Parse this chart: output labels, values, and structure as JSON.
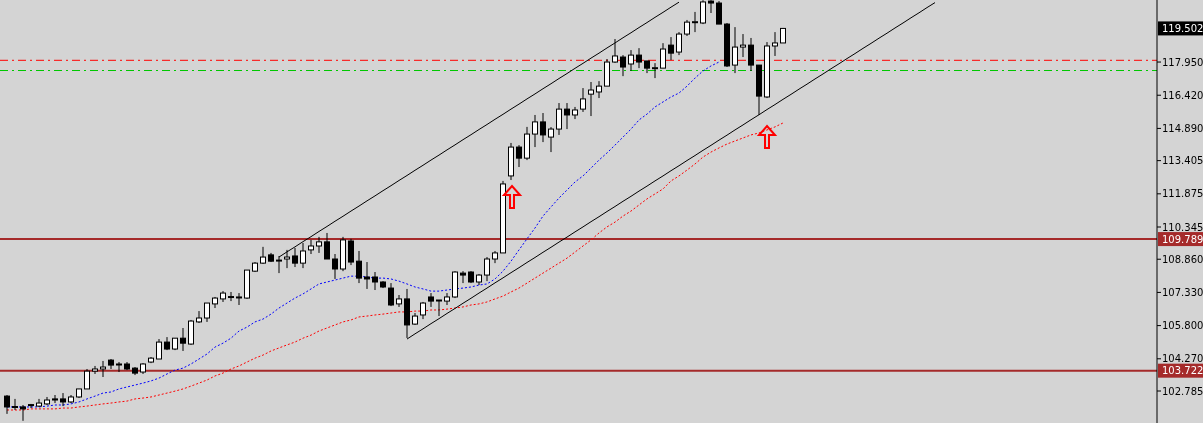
{
  "chart_data": {
    "type": "candlestick",
    "tick_labels": "y",
    "categories": [
      null,
      null,
      null,
      null,
      null,
      null,
      null,
      null,
      null,
      null,
      null,
      null,
      null,
      null,
      null,
      null,
      null,
      null,
      null,
      null,
      null,
      null,
      null,
      null,
      null,
      null,
      null,
      null,
      null,
      null,
      null,
      null,
      null,
      null,
      null,
      null,
      null,
      null,
      null,
      null,
      null,
      null,
      null,
      null,
      null,
      null,
      null,
      null,
      null,
      null,
      null,
      null,
      null,
      null,
      null,
      null,
      null,
      null,
      null,
      null,
      null,
      null,
      null,
      null,
      null,
      null,
      null,
      null,
      null,
      null,
      null,
      null,
      null,
      null,
      null,
      null,
      null,
      null,
      null,
      null,
      null,
      null,
      null,
      null,
      null,
      null,
      null,
      null,
      null,
      null,
      null,
      null,
      null,
      null,
      null,
      null,
      null,
      null,
      null,
      null,
      null,
      null,
      null,
      null,
      null,
      null,
      null,
      null,
      null,
      null,
      null,
      null,
      null,
      null,
      null,
      null,
      null
    ],
    "ylim": [
      101.31,
      120.81
    ],
    "yticks": [
      {
        "value": 117.95,
        "label": "117.950"
      },
      {
        "value": 116.42,
        "label": "116.420"
      },
      {
        "value": 114.89,
        "label": "114.890"
      },
      {
        "value": 113.405,
        "label": "113.405"
      },
      {
        "value": 111.875,
        "label": "111.875"
      },
      {
        "value": 110.345,
        "label": "110.345"
      },
      {
        "value": 108.86,
        "label": "108.860"
      },
      {
        "value": 107.33,
        "label": "107.330"
      },
      {
        "value": 105.8,
        "label": "105.800"
      },
      {
        "value": 104.27,
        "label": "104.270"
      },
      {
        "value": 102.785,
        "label": "102.785"
      }
    ],
    "ohlc": [
      [
        102.55,
        102.6,
        101.73,
        102.05
      ],
      [
        102.05,
        102.42,
        101.91,
        102.07
      ],
      [
        102.05,
        102.14,
        101.41,
        101.96
      ],
      [
        102.14,
        102.19,
        102.0,
        102.16
      ],
      [
        102.09,
        102.42,
        102.05,
        102.23
      ],
      [
        102.19,
        102.51,
        102.14,
        102.37
      ],
      [
        102.42,
        102.6,
        102.23,
        102.37
      ],
      [
        102.42,
        102.69,
        102.09,
        102.28
      ],
      [
        102.28,
        102.6,
        102.23,
        102.51
      ],
      [
        102.51,
        102.88,
        102.46,
        102.88
      ],
      [
        102.88,
        103.8,
        102.88,
        103.7
      ],
      [
        103.7,
        103.94,
        103.57,
        103.8
      ],
      [
        103.8,
        104.17,
        103.43,
        103.89
      ],
      [
        104.21,
        104.26,
        103.8,
        103.98
      ],
      [
        104.03,
        104.12,
        103.66,
        104.03
      ],
      [
        104.03,
        104.12,
        103.75,
        103.8
      ],
      [
        103.84,
        103.89,
        103.52,
        103.61
      ],
      [
        103.66,
        104.07,
        103.57,
        104.03
      ],
      [
        104.12,
        104.35,
        104.07,
        104.3
      ],
      [
        104.26,
        105.18,
        104.26,
        105.04
      ],
      [
        105.04,
        105.27,
        104.67,
        104.72
      ],
      [
        104.72,
        105.22,
        104.67,
        105.22
      ],
      [
        105.22,
        105.69,
        104.63,
        104.99
      ],
      [
        104.95,
        106.06,
        104.91,
        106.01
      ],
      [
        105.97,
        106.47,
        105.92,
        106.15
      ],
      [
        106.15,
        106.84,
        105.97,
        106.84
      ],
      [
        106.8,
        107.12,
        106.61,
        107.07
      ],
      [
        107.03,
        107.39,
        106.89,
        107.3
      ],
      [
        107.12,
        107.35,
        106.93,
        107.14
      ],
      [
        107.12,
        107.3,
        106.75,
        107.1
      ],
      [
        107.07,
        108.36,
        107.03,
        108.36
      ],
      [
        108.31,
        108.73,
        108.27,
        108.68
      ],
      [
        108.68,
        109.43,
        108.64,
        108.96
      ],
      [
        109.06,
        109.15,
        108.73,
        108.77
      ],
      [
        108.82,
        109.01,
        108.22,
        108.82
      ],
      [
        108.87,
        109.29,
        108.45,
        108.96
      ],
      [
        109.01,
        109.38,
        108.5,
        108.68
      ],
      [
        108.68,
        109.61,
        108.45,
        109.24
      ],
      [
        109.29,
        109.75,
        109.1,
        109.47
      ],
      [
        109.47,
        109.89,
        109.15,
        109.66
      ],
      [
        109.66,
        110.07,
        108.87,
        108.87
      ],
      [
        108.87,
        109.1,
        107.95,
        108.41
      ],
      [
        108.41,
        109.89,
        108.31,
        109.75
      ],
      [
        109.7,
        109.8,
        108.59,
        108.73
      ],
      [
        108.77,
        109.24,
        107.76,
        107.99
      ],
      [
        108.04,
        108.73,
        107.49,
        107.95
      ],
      [
        108.04,
        108.27,
        107.44,
        107.81
      ],
      [
        107.81,
        107.85,
        107.53,
        107.58
      ],
      [
        107.53,
        107.76,
        106.7,
        106.75
      ],
      [
        106.8,
        107.21,
        106.66,
        107.03
      ],
      [
        107.03,
        107.49,
        105.23,
        105.83
      ],
      [
        105.87,
        106.38,
        105.83,
        106.24
      ],
      [
        106.29,
        106.89,
        106.1,
        106.84
      ],
      [
        107.12,
        107.3,
        106.66,
        106.93
      ],
      [
        106.98,
        106.98,
        106.24,
        106.98
      ],
      [
        106.93,
        107.3,
        106.75,
        107.12
      ],
      [
        107.12,
        108.31,
        107.07,
        108.27
      ],
      [
        108.22,
        108.31,
        107.76,
        108.13
      ],
      [
        108.27,
        108.31,
        107.76,
        107.81
      ],
      [
        107.81,
        108.18,
        107.67,
        108.13
      ],
      [
        108.13,
        108.96,
        107.85,
        108.87
      ],
      [
        108.87,
        109.24,
        108.68,
        109.15
      ],
      [
        109.15,
        112.47,
        109.15,
        112.33
      ],
      [
        112.7,
        114.22,
        112.51,
        114.03
      ],
      [
        114.03,
        114.12,
        113.11,
        113.52
      ],
      [
        113.52,
        114.96,
        113.43,
        114.63
      ],
      [
        114.63,
        115.51,
        114.03,
        115.19
      ],
      [
        115.19,
        115.6,
        114.26,
        114.59
      ],
      [
        114.49,
        114.95,
        113.8,
        114.86
      ],
      [
        114.86,
        116.06,
        114.59,
        115.78
      ],
      [
        115.78,
        116.06,
        114.86,
        115.51
      ],
      [
        115.51,
        115.88,
        115.32,
        115.74
      ],
      [
        115.78,
        116.75,
        115.65,
        116.25
      ],
      [
        116.47,
        117.03,
        115.46,
        116.66
      ],
      [
        116.57,
        117.07,
        116.29,
        116.84
      ],
      [
        116.84,
        118.09,
        116.84,
        117.95
      ],
      [
        117.95,
        119.01,
        117.91,
        118.23
      ],
      [
        118.18,
        118.27,
        117.3,
        117.72
      ],
      [
        117.86,
        118.5,
        117.54,
        118.27
      ],
      [
        118.27,
        118.59,
        117.67,
        117.95
      ],
      [
        118.0,
        118.0,
        117.44,
        117.67
      ],
      [
        117.67,
        117.9,
        117.21,
        117.69
      ],
      [
        117.67,
        118.82,
        117.67,
        118.55
      ],
      [
        118.73,
        119.1,
        118.04,
        118.36
      ],
      [
        118.41,
        119.33,
        118.27,
        119.24
      ],
      [
        119.24,
        119.89,
        119.15,
        119.79
      ],
      [
        119.79,
        120.26,
        119.33,
        119.81
      ],
      [
        119.75,
        120.8,
        119.7,
        120.72
      ],
      [
        120.76,
        120.8,
        120.21,
        120.67
      ],
      [
        120.67,
        120.76,
        119.7,
        119.7
      ],
      [
        119.7,
        119.75,
        117.72,
        117.77
      ],
      [
        117.81,
        119.56,
        117.44,
        118.64
      ],
      [
        118.64,
        119.24,
        118.18,
        118.73
      ],
      [
        118.73,
        119.06,
        117.54,
        117.81
      ],
      [
        117.81,
        117.81,
        115.51,
        116.38
      ],
      [
        116.34,
        118.87,
        116.29,
        118.69
      ],
      [
        118.69,
        119.33,
        118.23,
        118.83
      ],
      [
        118.83,
        119.52,
        118.83,
        119.5
      ],
      null,
      null,
      null,
      null,
      null,
      null,
      null,
      null,
      null,
      null,
      null,
      null,
      null,
      null,
      null,
      null,
      null,
      null,
      null
    ],
    "series": [
      {
        "type": "line",
        "color": "#0000ff",
        "line_style": "dotted",
        "values": [
          102.05,
          102.05,
          102.05,
          102.05,
          102.05,
          102.09,
          102.14,
          102.14,
          102.19,
          102.28,
          102.42,
          102.55,
          102.69,
          102.74,
          102.88,
          102.97,
          103.06,
          103.15,
          103.25,
          103.38,
          103.57,
          103.75,
          103.84,
          104.03,
          104.26,
          104.49,
          104.81,
          104.99,
          105.22,
          105.55,
          105.73,
          105.97,
          106.1,
          106.33,
          106.61,
          106.84,
          107.07,
          107.26,
          107.49,
          107.72,
          107.81,
          107.9,
          107.99,
          108.08,
          108.08,
          108.04,
          107.99,
          107.99,
          107.95,
          107.85,
          107.72,
          107.58,
          107.49,
          107.39,
          107.39,
          107.44,
          107.49,
          107.53,
          107.58,
          107.67,
          107.72,
          107.95,
          108.31,
          108.77,
          109.29,
          109.8,
          110.3,
          110.85,
          111.27,
          111.68,
          112.05,
          112.42,
          112.7,
          113.06,
          113.43,
          113.76,
          114.12,
          114.49,
          114.86,
          115.28,
          115.55,
          115.88,
          116.11,
          116.34,
          116.52,
          116.84,
          117.21,
          117.54,
          117.77,
          117.95,
          null,
          null,
          null,
          null,
          null,
          null,
          null,
          null,
          null,
          null,
          null,
          null,
          null,
          null,
          null,
          null,
          null,
          null,
          null,
          null,
          null,
          null,
          null,
          null,
          null,
          null,
          null
        ]
      },
      {
        "type": "line",
        "color": "#ff0000",
        "line_style": "dotted",
        "values": [
          101.91,
          101.91,
          101.91,
          101.96,
          101.96,
          101.96,
          101.96,
          102.0,
          102.0,
          102.05,
          102.09,
          102.14,
          102.19,
          102.23,
          102.28,
          102.32,
          102.42,
          102.46,
          102.51,
          102.6,
          102.69,
          102.78,
          102.88,
          103.01,
          103.15,
          103.29,
          103.48,
          103.61,
          103.8,
          103.94,
          104.12,
          104.3,
          104.44,
          104.63,
          104.77,
          104.91,
          105.04,
          105.22,
          105.36,
          105.55,
          105.69,
          105.83,
          105.97,
          106.06,
          106.2,
          106.24,
          106.29,
          106.33,
          106.38,
          106.43,
          106.43,
          106.47,
          106.47,
          106.52,
          106.52,
          106.56,
          106.61,
          106.66,
          106.75,
          106.8,
          106.89,
          107.03,
          107.16,
          107.35,
          107.53,
          107.76,
          107.99,
          108.22,
          108.45,
          108.68,
          108.91,
          109.19,
          109.47,
          109.75,
          110.07,
          110.35,
          110.57,
          110.85,
          111.08,
          111.36,
          111.64,
          111.87,
          112.1,
          112.47,
          112.7,
          112.97,
          113.25,
          113.57,
          113.8,
          113.99,
          114.17,
          114.31,
          114.45,
          114.59,
          114.68,
          114.82,
          114.96,
          115.14,
          null,
          null,
          null,
          null,
          null,
          null,
          null,
          null,
          null,
          null,
          null,
          null,
          null,
          null,
          null,
          null,
          null,
          null,
          null
        ]
      },
      {
        "type": "line",
        "color": "#000000",
        "line_style": "solid",
        "values": [
          null,
          null,
          null,
          null,
          null,
          null,
          null,
          null,
          null,
          null,
          null,
          null,
          null,
          null,
          null,
          null,
          null,
          null,
          null,
          null,
          null,
          null,
          null,
          null,
          null,
          null,
          null,
          null,
          null,
          null,
          null,
          null,
          null,
          null,
          108.96,
          109.2,
          109.43,
          109.67,
          109.9,
          110.14,
          110.37,
          110.61,
          110.84,
          111.08,
          111.31,
          111.55,
          111.78,
          112.02,
          112.25,
          112.49,
          112.72,
          112.96,
          113.19,
          113.43,
          113.66,
          113.9,
          114.13,
          114.37,
          114.6,
          114.84,
          115.07,
          115.31,
          115.54,
          115.78,
          116.01,
          116.25,
          116.48,
          116.72,
          116.95,
          117.19,
          117.42,
          117.66,
          117.89,
          118.13,
          118.36,
          118.6,
          118.83,
          119.07,
          119.3,
          119.54,
          119.77,
          120.01,
          120.24,
          120.48,
          120.71,
          null,
          null,
          null,
          null,
          null,
          null,
          null,
          null,
          null,
          null,
          null,
          null,
          null,
          null,
          null,
          null,
          null,
          null,
          null,
          null,
          null,
          null,
          null,
          null,
          null,
          null,
          null,
          null,
          null,
          null,
          null,
          null
        ]
      },
      {
        "type": "line",
        "color": "#000000",
        "line_style": "solid",
        "values": [
          null,
          null,
          null,
          null,
          null,
          null,
          null,
          null,
          null,
          null,
          null,
          null,
          null,
          null,
          null,
          null,
          null,
          null,
          null,
          null,
          null,
          null,
          null,
          null,
          null,
          null,
          null,
          null,
          null,
          null,
          null,
          null,
          null,
          null,
          null,
          null,
          null,
          null,
          null,
          null,
          null,
          null,
          null,
          null,
          null,
          null,
          null,
          null,
          null,
          null,
          105.18,
          105.42,
          105.65,
          105.89,
          106.12,
          106.36,
          106.59,
          106.83,
          107.06,
          107.3,
          107.53,
          107.77,
          108.0,
          108.24,
          108.47,
          108.71,
          108.94,
          109.18,
          109.41,
          109.65,
          109.88,
          110.12,
          110.35,
          110.59,
          110.82,
          111.06,
          111.29,
          111.53,
          111.76,
          112.0,
          112.23,
          112.47,
          112.7,
          112.94,
          113.17,
          113.41,
          113.64,
          113.88,
          114.11,
          114.35,
          114.58,
          114.82,
          115.05,
          115.29,
          115.52,
          115.76,
          115.99,
          116.23,
          116.46,
          116.7,
          116.93,
          117.17,
          117.4,
          117.64,
          117.87,
          118.11,
          118.34,
          118.58,
          118.81,
          119.05,
          119.28,
          119.52,
          119.75,
          119.99,
          120.22,
          120.46,
          120.69
        ]
      }
    ],
    "ref_lines": [
      {
        "axis": "y",
        "value": 109.789,
        "label": "109.789",
        "color": "#a52a2a",
        "line_style": "solid"
      },
      {
        "axis": "y",
        "value": 103.722,
        "label": "103.722",
        "color": "#a52a2a",
        "line_style": "solid"
      },
      {
        "axis": "y",
        "value": 118.03,
        "color": "#ff0000",
        "line_style": "dashed"
      },
      {
        "axis": "y",
        "value": 117.56,
        "color": "#00c800",
        "line_style": "dashed"
      }
    ],
    "annotations": [
      "119.502"
    ]
  }
}
